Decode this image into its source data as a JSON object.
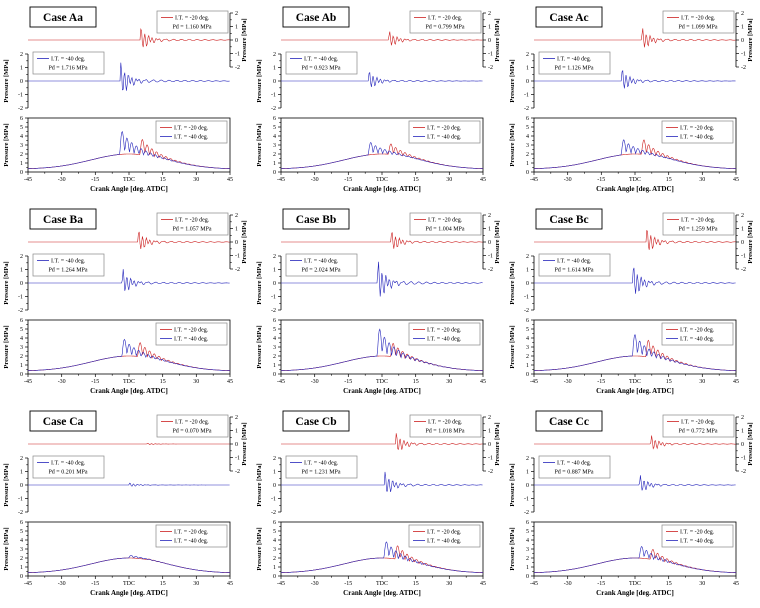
{
  "figure": {
    "x_axis_label": "Crank Angle [deg. ATDC]",
    "y_axis_label": "Pressure [MPa]",
    "x_tick_labels": [
      "-45",
      "-30",
      "-15",
      "TDC",
      "15",
      "30",
      "45"
    ],
    "small_y_tick_labels": [
      "2",
      "1",
      "0",
      "-1",
      "-2"
    ],
    "bottom_y_tick_labels": [
      "0",
      "1",
      "2",
      "3",
      "4",
      "5",
      "6"
    ]
  },
  "colors": {
    "red_series": "#cc2020",
    "blue_series": "#2525bb",
    "frame": "#000000",
    "legend_border": "#888888"
  },
  "chart_data": {
    "type": "line",
    "layout": "3x3 grid of cases; each case has three stacked subplots: red-only pressure oscillation trace, blue-only pressure oscillation trace, and combined cylinder-pressure traces vs crank angle",
    "x": {
      "label": "Crank Angle [deg. ATDC]",
      "range": [
        -45,
        45
      ],
      "ticks": [
        "-45",
        "-30",
        "-15",
        "TDC",
        "15",
        "30",
        "45"
      ]
    },
    "oscillation_subplot": {
      "ylabel": "Pressure [MPa]",
      "ylim": [
        -2,
        2
      ],
      "y_ticks": [
        2,
        1,
        0,
        -1,
        -2
      ]
    },
    "combined_subplot": {
      "ylabel": "Pressure [MPa]",
      "ylim": [
        0,
        6
      ],
      "y_ticks": [
        0,
        1,
        2,
        3,
        4,
        5,
        6
      ],
      "legend": [
        "I.T. = -20 deg.",
        "I.T. = -40 deg."
      ]
    },
    "base_compression_peak_mpa": 2.0,
    "panels": [
      {
        "title": "Case Aa",
        "red": {
          "legend": "I.T. = -20 deg.",
          "pd_label": "Pd = 1.160 MPa",
          "pd_mpa": 1.16,
          "spike_deg": 5
        },
        "blue": {
          "legend": "I.T. = -40 deg.",
          "pd_label": "Pd = 1.716 MPa",
          "pd_mpa": 1.716,
          "spike_deg": -4
        }
      },
      {
        "title": "Case Ab",
        "red": {
          "legend": "I.T. = -20 deg.",
          "pd_label": "Pd = 0.799 MPa",
          "pd_mpa": 0.799,
          "spike_deg": 3
        },
        "blue": {
          "legend": "I.T. = -40 deg.",
          "pd_label": "Pd = 0.923 MPa",
          "pd_mpa": 0.923,
          "spike_deg": -6
        }
      },
      {
        "title": "Case Ac",
        "red": {
          "legend": "I.T. = -20 deg.",
          "pd_label": "Pd = 1.099 MPa",
          "pd_mpa": 1.099,
          "spike_deg": 3
        },
        "blue": {
          "legend": "I.T. = -40 deg.",
          "pd_label": "Pd = 1.126 MPa",
          "pd_mpa": 1.126,
          "spike_deg": -6
        }
      },
      {
        "title": "Case Ba",
        "red": {
          "legend": "I.T. = -20 deg.",
          "pd_label": "Pd = 1.057 MPa",
          "pd_mpa": 1.057,
          "spike_deg": 4
        },
        "blue": {
          "legend": "I.T. = -40 deg.",
          "pd_label": "Pd = 1.264 MPa",
          "pd_mpa": 1.264,
          "spike_deg": -3
        }
      },
      {
        "title": "Case Bb",
        "red": {
          "legend": "I.T. = -20 deg.",
          "pd_label": "Pd = 1.004 MPa",
          "pd_mpa": 1.004,
          "spike_deg": 4
        },
        "blue": {
          "legend": "I.T. = -40 deg.",
          "pd_label": "Pd = 2.024 MPa",
          "pd_mpa": 2.024,
          "spike_deg": -2
        }
      },
      {
        "title": "Case Bc",
        "red": {
          "legend": "I.T. = -20 deg.",
          "pd_label": "Pd = 1.259 MPa",
          "pd_mpa": 1.259,
          "spike_deg": 5
        },
        "blue": {
          "legend": "I.T. = -40 deg.",
          "pd_label": "Pd = 1.614 MPa",
          "pd_mpa": 1.614,
          "spike_deg": -1
        }
      },
      {
        "title": "Case Ca",
        "red": {
          "legend": "I.T. = -20 deg.",
          "pd_label": "Pd = 0.070 MPa",
          "pd_mpa": 0.07,
          "spike_deg": 8
        },
        "blue": {
          "legend": "I.T. = -40 deg.",
          "pd_label": "Pd = 0.201 MPa",
          "pd_mpa": 0.201,
          "spike_deg": 0
        }
      },
      {
        "title": "Case Cb",
        "red": {
          "legend": "I.T. = -20 deg.",
          "pd_label": "Pd = 1.018 MPa",
          "pd_mpa": 1.018,
          "spike_deg": 6
        },
        "blue": {
          "legend": "I.T. = -40 deg.",
          "pd_label": "Pd = 1.231 MPa",
          "pd_mpa": 1.231,
          "spike_deg": 1
        }
      },
      {
        "title": "Case Cc",
        "red": {
          "legend": "I.T. = -20 deg.",
          "pd_label": "Pd = 0.772 MPa",
          "pd_mpa": 0.772,
          "spike_deg": 7
        },
        "blue": {
          "legend": "I.T. = -40 deg.",
          "pd_label": "Pd = 0.887 MPa",
          "pd_mpa": 0.887,
          "spike_deg": 2
        }
      }
    ]
  }
}
